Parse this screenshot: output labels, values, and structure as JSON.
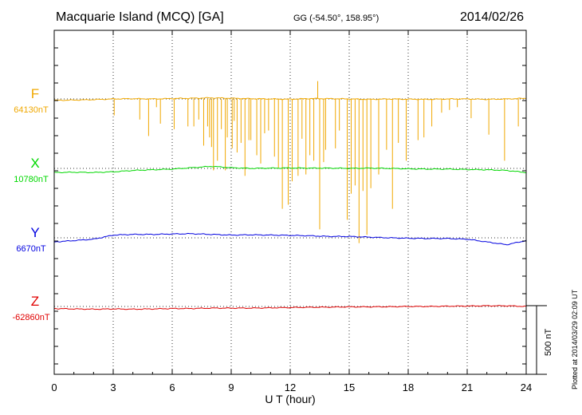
{
  "header": {
    "station": "Macquarie Island (MCQ)  [GA]",
    "coords": "GG (-54.50°, 158.95°)",
    "date": "2014/02/26"
  },
  "footer": {
    "plotted": "Plotted at 2014/03/29 02:09 UT",
    "scale_label": "500 nT"
  },
  "chart_data": {
    "type": "line",
    "title": "Macquarie Island (MCQ)  [GA]",
    "xlabel": "U T (hour)",
    "xlim": [
      0,
      24
    ],
    "xticks": [
      0,
      3,
      6,
      9,
      12,
      15,
      18,
      21,
      24
    ],
    "xtick_labels": [
      "0",
      "3",
      "6",
      "9",
      "12",
      "15",
      "18",
      "21",
      "24"
    ],
    "scale_bar_nT": 500,
    "series": [
      {
        "name": "F",
        "baseline_nT": 64130,
        "baseline_label": "64130nT",
        "color": "#f0a800",
        "x": [
          0,
          1,
          2,
          3,
          4,
          5,
          6,
          7,
          8,
          9,
          10,
          11,
          12,
          13,
          14,
          15,
          16,
          17,
          18,
          19,
          20,
          21,
          22,
          23,
          24
        ],
        "values": [
          -10,
          -8,
          -5,
          0,
          2,
          0,
          3,
          5,
          8,
          5,
          2,
          0,
          -2,
          3,
          2,
          0,
          -3,
          0,
          -2,
          -3,
          0,
          0,
          -3,
          0,
          5
        ],
        "spikes": [
          {
            "t": 3.05,
            "d": 120
          },
          {
            "t": 4.35,
            "d": 150
          },
          {
            "t": 4.8,
            "d": 270
          },
          {
            "t": 5.2,
            "d": 60
          },
          {
            "t": 5.4,
            "d": 180
          },
          {
            "t": 6.1,
            "d": 220
          },
          {
            "t": 6.8,
            "d": 200
          },
          {
            "t": 7.1,
            "d": 200
          },
          {
            "t": 7.35,
            "d": 150
          },
          {
            "t": 7.6,
            "d": 340
          },
          {
            "t": 7.8,
            "d": 200
          },
          {
            "t": 7.9,
            "d": 280
          },
          {
            "t": 8.0,
            "d": 350
          },
          {
            "t": 8.1,
            "d": 520
          },
          {
            "t": 8.3,
            "d": 450
          },
          {
            "t": 8.5,
            "d": 220
          },
          {
            "t": 8.7,
            "d": 520
          },
          {
            "t": 8.8,
            "d": 280
          },
          {
            "t": 9.05,
            "d": 360
          },
          {
            "t": 9.15,
            "d": 160
          },
          {
            "t": 9.3,
            "d": 390
          },
          {
            "t": 9.5,
            "d": 320
          },
          {
            "t": 9.7,
            "d": 560
          },
          {
            "t": 9.9,
            "d": 300
          },
          {
            "t": 10.0,
            "d": 300
          },
          {
            "t": 10.3,
            "d": 410
          },
          {
            "t": 10.5,
            "d": 470
          },
          {
            "t": 10.7,
            "d": 250
          },
          {
            "t": 10.9,
            "d": 230
          },
          {
            "t": 11.2,
            "d": 420
          },
          {
            "t": 11.4,
            "d": 500
          },
          {
            "t": 11.6,
            "d": 800
          },
          {
            "t": 11.9,
            "d": 770
          },
          {
            "t": 12.1,
            "d": 600
          },
          {
            "t": 12.4,
            "d": 560
          },
          {
            "t": 12.6,
            "d": 290
          },
          {
            "t": 12.8,
            "d": 550
          },
          {
            "t": 13.0,
            "d": 410
          },
          {
            "t": 13.2,
            "d": 450
          },
          {
            "t": 13.5,
            "d": 950
          },
          {
            "t": 13.7,
            "d": 460
          },
          {
            "t": 13.8,
            "d": 370
          },
          {
            "t": 14.3,
            "d": 360
          },
          {
            "t": 14.5,
            "d": 230
          },
          {
            "t": 14.9,
            "d": 880
          },
          {
            "t": 15.1,
            "d": 690
          },
          {
            "t": 15.3,
            "d": 630
          },
          {
            "t": 15.5,
            "d": 1050
          },
          {
            "t": 15.7,
            "d": 670
          },
          {
            "t": 15.9,
            "d": 990
          },
          {
            "t": 16.1,
            "d": 650
          },
          {
            "t": 16.5,
            "d": 550
          },
          {
            "t": 16.9,
            "d": 370
          },
          {
            "t": 17.2,
            "d": 800
          },
          {
            "t": 17.5,
            "d": 320
          },
          {
            "t": 17.9,
            "d": 450
          },
          {
            "t": 18.5,
            "d": 300
          },
          {
            "t": 18.8,
            "d": 280
          },
          {
            "t": 19.2,
            "d": 200
          },
          {
            "t": 19.7,
            "d": 100
          },
          {
            "t": 20.1,
            "d": 80
          },
          {
            "t": 20.5,
            "d": 60
          },
          {
            "t": 21.2,
            "d": 140
          },
          {
            "t": 22.1,
            "d": 260
          },
          {
            "t": 22.9,
            "d": 450
          },
          {
            "t": 23.6,
            "d": 200
          }
        ],
        "up_spikes": [
          {
            "t": 13.4,
            "h": 130
          }
        ]
      },
      {
        "name": "X",
        "baseline_nT": 10780,
        "baseline_label": "10780nT",
        "color": "#00d800",
        "x": [
          0,
          1,
          2,
          3,
          4,
          5,
          6,
          7,
          8,
          9,
          10,
          11,
          12,
          13,
          14,
          15,
          16,
          17,
          18,
          19,
          20,
          21,
          22,
          23,
          24
        ],
        "values": [
          -30,
          -28,
          -30,
          -25,
          -15,
          -10,
          -5,
          5,
          15,
          5,
          0,
          2,
          3,
          2,
          2,
          0,
          2,
          0,
          -3,
          -5,
          -5,
          -8,
          -10,
          -15,
          -30
        ]
      },
      {
        "name": "Y",
        "baseline_nT": 6670,
        "baseline_label": "6670nT",
        "color": "#0000e0",
        "x": [
          0,
          1,
          2,
          3,
          4,
          5,
          6,
          7,
          8,
          9,
          10,
          11,
          12,
          13,
          14,
          15,
          16,
          17,
          18,
          19,
          20,
          21,
          22,
          23,
          24
        ],
        "values": [
          -30,
          -20,
          -10,
          20,
          25,
          25,
          28,
          30,
          25,
          20,
          22,
          20,
          18,
          15,
          10,
          10,
          5,
          0,
          -3,
          -5,
          -5,
          -10,
          -30,
          -50,
          -20
        ]
      },
      {
        "name": "Z",
        "baseline_nT": -62860,
        "baseline_label": "-62860nT",
        "color": "#e00000",
        "x": [
          0,
          1,
          2,
          3,
          4,
          5,
          6,
          7,
          8,
          9,
          10,
          11,
          12,
          13,
          14,
          15,
          16,
          17,
          18,
          19,
          20,
          21,
          22,
          23,
          24
        ],
        "values": [
          -15,
          -18,
          -20,
          -18,
          -20,
          -18,
          -15,
          -15,
          -12,
          -12,
          -12,
          -10,
          -8,
          -6,
          -5,
          -3,
          -3,
          -2,
          0,
          0,
          2,
          3,
          5,
          5,
          0
        ]
      }
    ]
  }
}
